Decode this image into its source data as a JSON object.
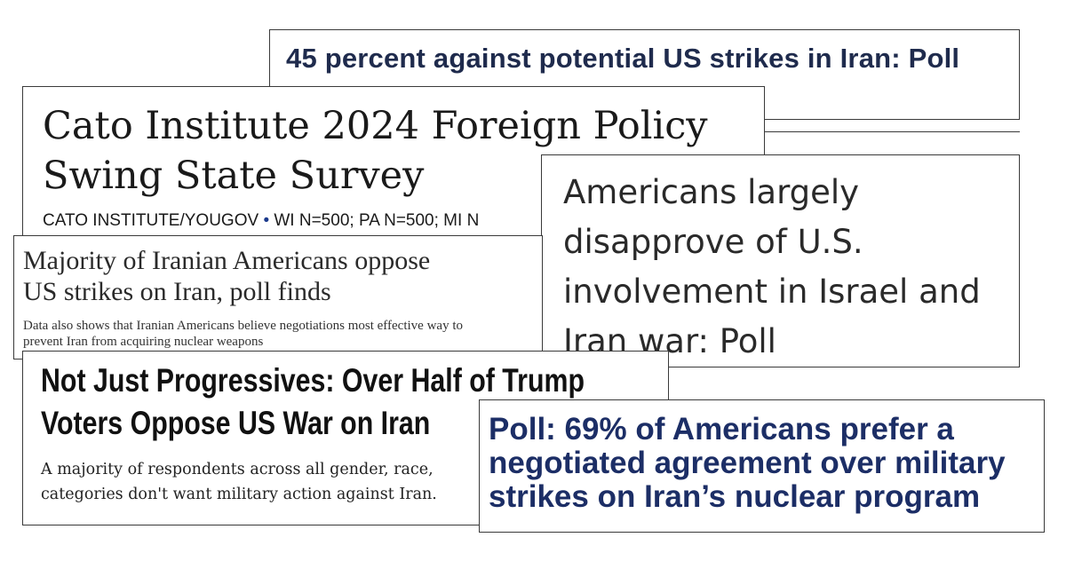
{
  "cards": {
    "c1": {
      "headline": "45 percent against potential US strikes in Iran: Poll"
    },
    "c2": {
      "headline_line1": "Cato Institute 2024 Foreign Policy",
      "headline_line2": "Swing State Survey",
      "byline_source": "CATO INSTITUTE/YOUGOV",
      "byline_sep": "•",
      "byline_detail": "WI N=500; PA N=500; MI N"
    },
    "c3": {
      "headline_line1": "Americans largely",
      "headline_line2": "disapprove of U.S.",
      "headline_line3": "involvement in Israel and",
      "headline_line4": "Iran war: Poll"
    },
    "c4": {
      "headline_line1": "Majority of Iranian Americans oppose",
      "headline_line2": "US strikes on Iran, poll finds",
      "dek_line1": "Data also shows that Iranian Americans believe negotiations most effective way to",
      "dek_line2": "prevent Iran from acquiring nuclear weapons"
    },
    "c5": {
      "headline_line1": "Not Just Progressives: Over Half of Trump",
      "headline_line2": "Voters Oppose US War on Iran",
      "dek_line1": "A majority of respondents across all gender, race,",
      "dek_line2": "categories don't want military action against Iran."
    },
    "c6": {
      "headline_line1": "Poll: 69% of Americans prefer a",
      "headline_line2": "negotiated agreement over military",
      "headline_line3": "strikes on Iran’s nuclear program"
    }
  },
  "colors": {
    "navy_headline": "#1f2b4d",
    "poll_headline": "#1c2e66",
    "bullet_blue": "#1b3a8c",
    "border": "#3a3a3a"
  }
}
